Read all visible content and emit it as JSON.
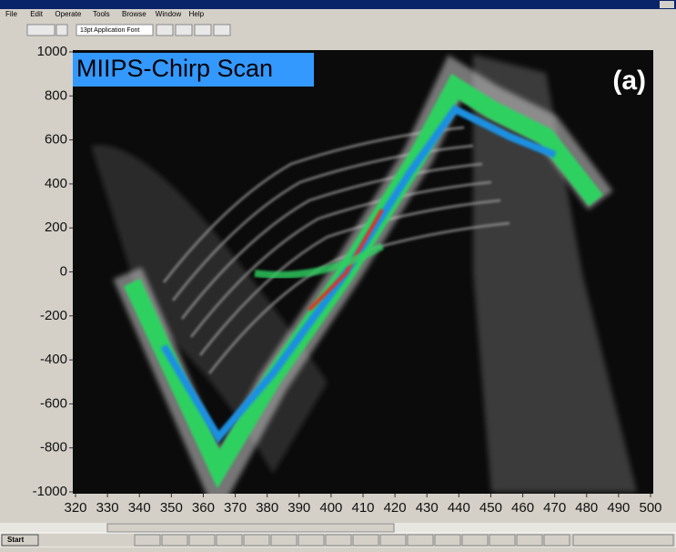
{
  "window": {
    "menu": [
      "File",
      "Edit",
      "Operate",
      "Tools",
      "Browse",
      "Window",
      "Help"
    ],
    "font_selector": "13pt Application Font",
    "start": "Start"
  },
  "chart_data": {
    "type": "heatmap",
    "title": "MIIPS-Chirp Scan",
    "annotation": "(a)",
    "xlim": [
      320,
      500
    ],
    "xticks": [
      320,
      330,
      340,
      350,
      360,
      370,
      380,
      390,
      400,
      410,
      420,
      430,
      440,
      450,
      460,
      470,
      480,
      490,
      500
    ],
    "ylim": [
      -1000,
      1000
    ],
    "yticks": [
      -1000,
      -800,
      -600,
      -400,
      -200,
      0,
      200,
      400,
      600,
      800,
      1000
    ]
  }
}
